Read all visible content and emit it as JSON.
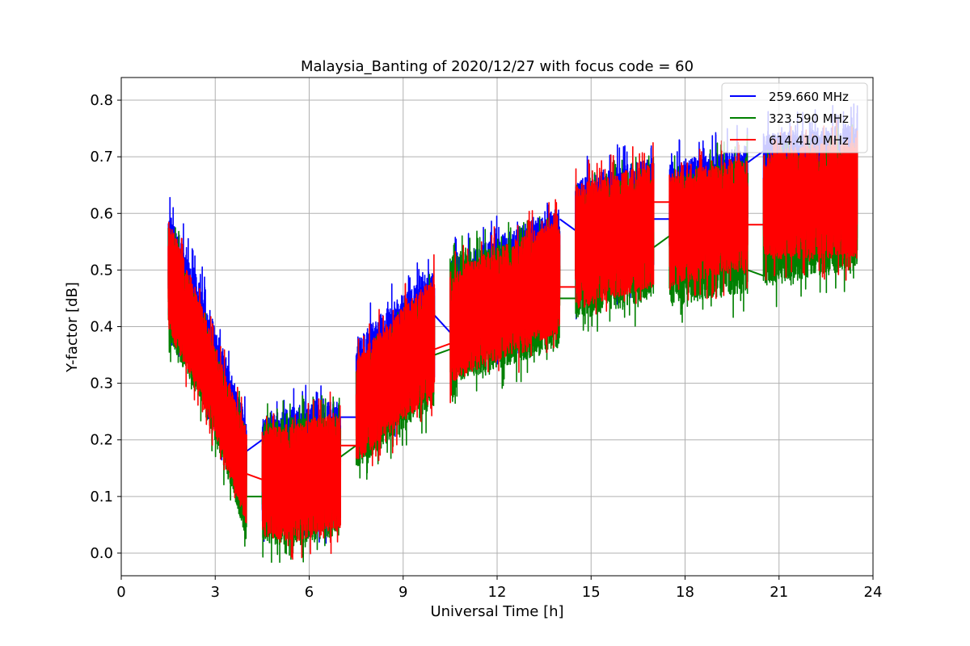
{
  "chart_data": {
    "type": "line",
    "title": "Malaysia_Banting of 2020/12/27 with focus code = 60",
    "xlabel": "Universal Time [h]",
    "ylabel": "Y-factor [dB]",
    "xlim": [
      0,
      24
    ],
    "ylim": [
      -0.04,
      0.84
    ],
    "xticks": [
      0,
      3,
      6,
      9,
      12,
      15,
      18,
      21,
      24
    ],
    "xtick_labels": [
      "0",
      "3",
      "6",
      "9",
      "12",
      "15",
      "18",
      "21",
      "24"
    ],
    "yticks": [
      0.0,
      0.1,
      0.2,
      0.3,
      0.4,
      0.5,
      0.6,
      0.7,
      0.8
    ],
    "ytick_labels": [
      "0.0",
      "0.1",
      "0.2",
      "0.3",
      "0.4",
      "0.5",
      "0.6",
      "0.7",
      "0.8"
    ],
    "grid": true,
    "legend_position": "top-right",
    "segments": [
      {
        "start": 1.5,
        "end": 4.0
      },
      {
        "start": 4.5,
        "end": 7.0
      },
      {
        "start": 7.5,
        "end": 10.0
      },
      {
        "start": 10.5,
        "end": 14.0
      },
      {
        "start": 14.5,
        "end": 17.0
      },
      {
        "start": 17.5,
        "end": 20.0
      },
      {
        "start": 20.5,
        "end": 23.5
      }
    ],
    "series": [
      {
        "name": "259.660 MHz",
        "color": "#0000ff",
        "envelope": [
          {
            "x": 1.5,
            "low": 0.4,
            "high": 0.6
          },
          {
            "x": 2.5,
            "low": 0.3,
            "high": 0.48
          },
          {
            "x": 3.5,
            "low": 0.16,
            "high": 0.32
          },
          {
            "x": 4.0,
            "low": 0.07,
            "high": 0.24
          },
          {
            "x": 4.5,
            "low": 0.04,
            "high": 0.24
          },
          {
            "x": 5.5,
            "low": 0.05,
            "high": 0.26
          },
          {
            "x": 7.0,
            "low": 0.06,
            "high": 0.27
          },
          {
            "x": 7.5,
            "low": 0.19,
            "high": 0.38
          },
          {
            "x": 10.0,
            "low": 0.3,
            "high": 0.51
          },
          {
            "x": 10.5,
            "low": 0.33,
            "high": 0.52
          },
          {
            "x": 14.0,
            "low": 0.41,
            "high": 0.61
          },
          {
            "x": 14.5,
            "low": 0.44,
            "high": 0.66
          },
          {
            "x": 17.0,
            "low": 0.49,
            "high": 0.7
          },
          {
            "x": 17.5,
            "low": 0.5,
            "high": 0.69
          },
          {
            "x": 20.0,
            "low": 0.52,
            "high": 0.72
          },
          {
            "x": 20.5,
            "low": 0.54,
            "high": 0.74
          },
          {
            "x": 23.5,
            "low": 0.55,
            "high": 0.76
          }
        ],
        "bridges": [
          {
            "x": [
              4.0,
              4.5
            ],
            "y": [
              0.18,
              0.2
            ]
          },
          {
            "x": [
              7.0,
              7.5
            ],
            "y": [
              0.24,
              0.24
            ]
          },
          {
            "x": [
              10.0,
              10.5
            ],
            "y": [
              0.42,
              0.39
            ]
          },
          {
            "x": [
              14.0,
              14.5
            ],
            "y": [
              0.59,
              0.57
            ]
          },
          {
            "x": [
              17.0,
              17.5
            ],
            "y": [
              0.59,
              0.59
            ]
          },
          {
            "x": [
              20.0,
              20.5
            ],
            "y": [
              0.69,
              0.71
            ]
          }
        ]
      },
      {
        "name": "323.590 MHz",
        "color": "#008000",
        "envelope": [
          {
            "x": 1.5,
            "low": 0.38,
            "high": 0.58
          },
          {
            "x": 2.5,
            "low": 0.27,
            "high": 0.44
          },
          {
            "x": 3.5,
            "low": 0.12,
            "high": 0.28
          },
          {
            "x": 4.0,
            "low": 0.02,
            "high": 0.22
          },
          {
            "x": 4.5,
            "low": 0.02,
            "high": 0.23
          },
          {
            "x": 5.5,
            "low": 0.01,
            "high": 0.24
          },
          {
            "x": 7.0,
            "low": 0.03,
            "high": 0.24
          },
          {
            "x": 7.5,
            "low": 0.15,
            "high": 0.33
          },
          {
            "x": 10.0,
            "low": 0.26,
            "high": 0.47
          },
          {
            "x": 10.5,
            "low": 0.3,
            "high": 0.53
          },
          {
            "x": 14.0,
            "low": 0.36,
            "high": 0.56
          },
          {
            "x": 14.5,
            "low": 0.41,
            "high": 0.63
          },
          {
            "x": 17.0,
            "low": 0.45,
            "high": 0.68
          },
          {
            "x": 17.5,
            "low": 0.44,
            "high": 0.66
          },
          {
            "x": 20.0,
            "low": 0.46,
            "high": 0.7
          },
          {
            "x": 20.5,
            "low": 0.47,
            "high": 0.7
          },
          {
            "x": 23.5,
            "low": 0.5,
            "high": 0.72
          }
        ],
        "bridges": [
          {
            "x": [
              4.0,
              4.5
            ],
            "y": [
              0.1,
              0.1
            ]
          },
          {
            "x": [
              7.0,
              7.5
            ],
            "y": [
              0.17,
              0.19
            ]
          },
          {
            "x": [
              10.0,
              10.5
            ],
            "y": [
              0.35,
              0.36
            ]
          },
          {
            "x": [
              14.0,
              14.5
            ],
            "y": [
              0.45,
              0.45
            ]
          },
          {
            "x": [
              17.0,
              17.5
            ],
            "y": [
              0.54,
              0.56
            ]
          },
          {
            "x": [
              20.0,
              20.5
            ],
            "y": [
              0.5,
              0.49
            ]
          }
        ]
      },
      {
        "name": "614.410 MHz",
        "color": "#ff0000",
        "envelope": [
          {
            "x": 1.5,
            "low": 0.39,
            "high": 0.59
          },
          {
            "x": 2.5,
            "low": 0.28,
            "high": 0.45
          },
          {
            "x": 3.5,
            "low": 0.13,
            "high": 0.29
          },
          {
            "x": 4.0,
            "low": 0.05,
            "high": 0.22
          },
          {
            "x": 4.5,
            "low": 0.03,
            "high": 0.22
          },
          {
            "x": 5.5,
            "low": 0.02,
            "high": 0.23
          },
          {
            "x": 7.0,
            "low": 0.04,
            "high": 0.25
          },
          {
            "x": 7.5,
            "low": 0.16,
            "high": 0.35
          },
          {
            "x": 10.0,
            "low": 0.28,
            "high": 0.49
          },
          {
            "x": 10.5,
            "low": 0.3,
            "high": 0.5
          },
          {
            "x": 14.0,
            "low": 0.39,
            "high": 0.59
          },
          {
            "x": 14.5,
            "low": 0.43,
            "high": 0.65
          },
          {
            "x": 17.0,
            "low": 0.47,
            "high": 0.69
          },
          {
            "x": 17.5,
            "low": 0.47,
            "high": 0.67
          },
          {
            "x": 20.0,
            "low": 0.5,
            "high": 0.7
          },
          {
            "x": 20.5,
            "low": 0.52,
            "high": 0.71
          },
          {
            "x": 23.5,
            "low": 0.52,
            "high": 0.73
          }
        ],
        "bridges": [
          {
            "x": [
              4.0,
              4.5
            ],
            "y": [
              0.14,
              0.13
            ]
          },
          {
            "x": [
              7.0,
              7.5
            ],
            "y": [
              0.19,
              0.19
            ]
          },
          {
            "x": [
              10.0,
              10.5
            ],
            "y": [
              0.36,
              0.37
            ]
          },
          {
            "x": [
              14.0,
              14.5
            ],
            "y": [
              0.47,
              0.47
            ]
          },
          {
            "x": [
              17.0,
              17.5
            ],
            "y": [
              0.62,
              0.62
            ]
          },
          {
            "x": [
              20.0,
              20.5
            ],
            "y": [
              0.58,
              0.58
            ]
          }
        ]
      }
    ]
  },
  "legend": {
    "items": [
      {
        "label": "259.660 MHz",
        "color": "#0000ff"
      },
      {
        "label": "323.590 MHz",
        "color": "#008000"
      },
      {
        "label": "614.410 MHz",
        "color": "#ff0000"
      }
    ]
  },
  "colors": {
    "grid": "#b0b0b0",
    "axes": "#000000",
    "legend_border": "#cccccc"
  }
}
